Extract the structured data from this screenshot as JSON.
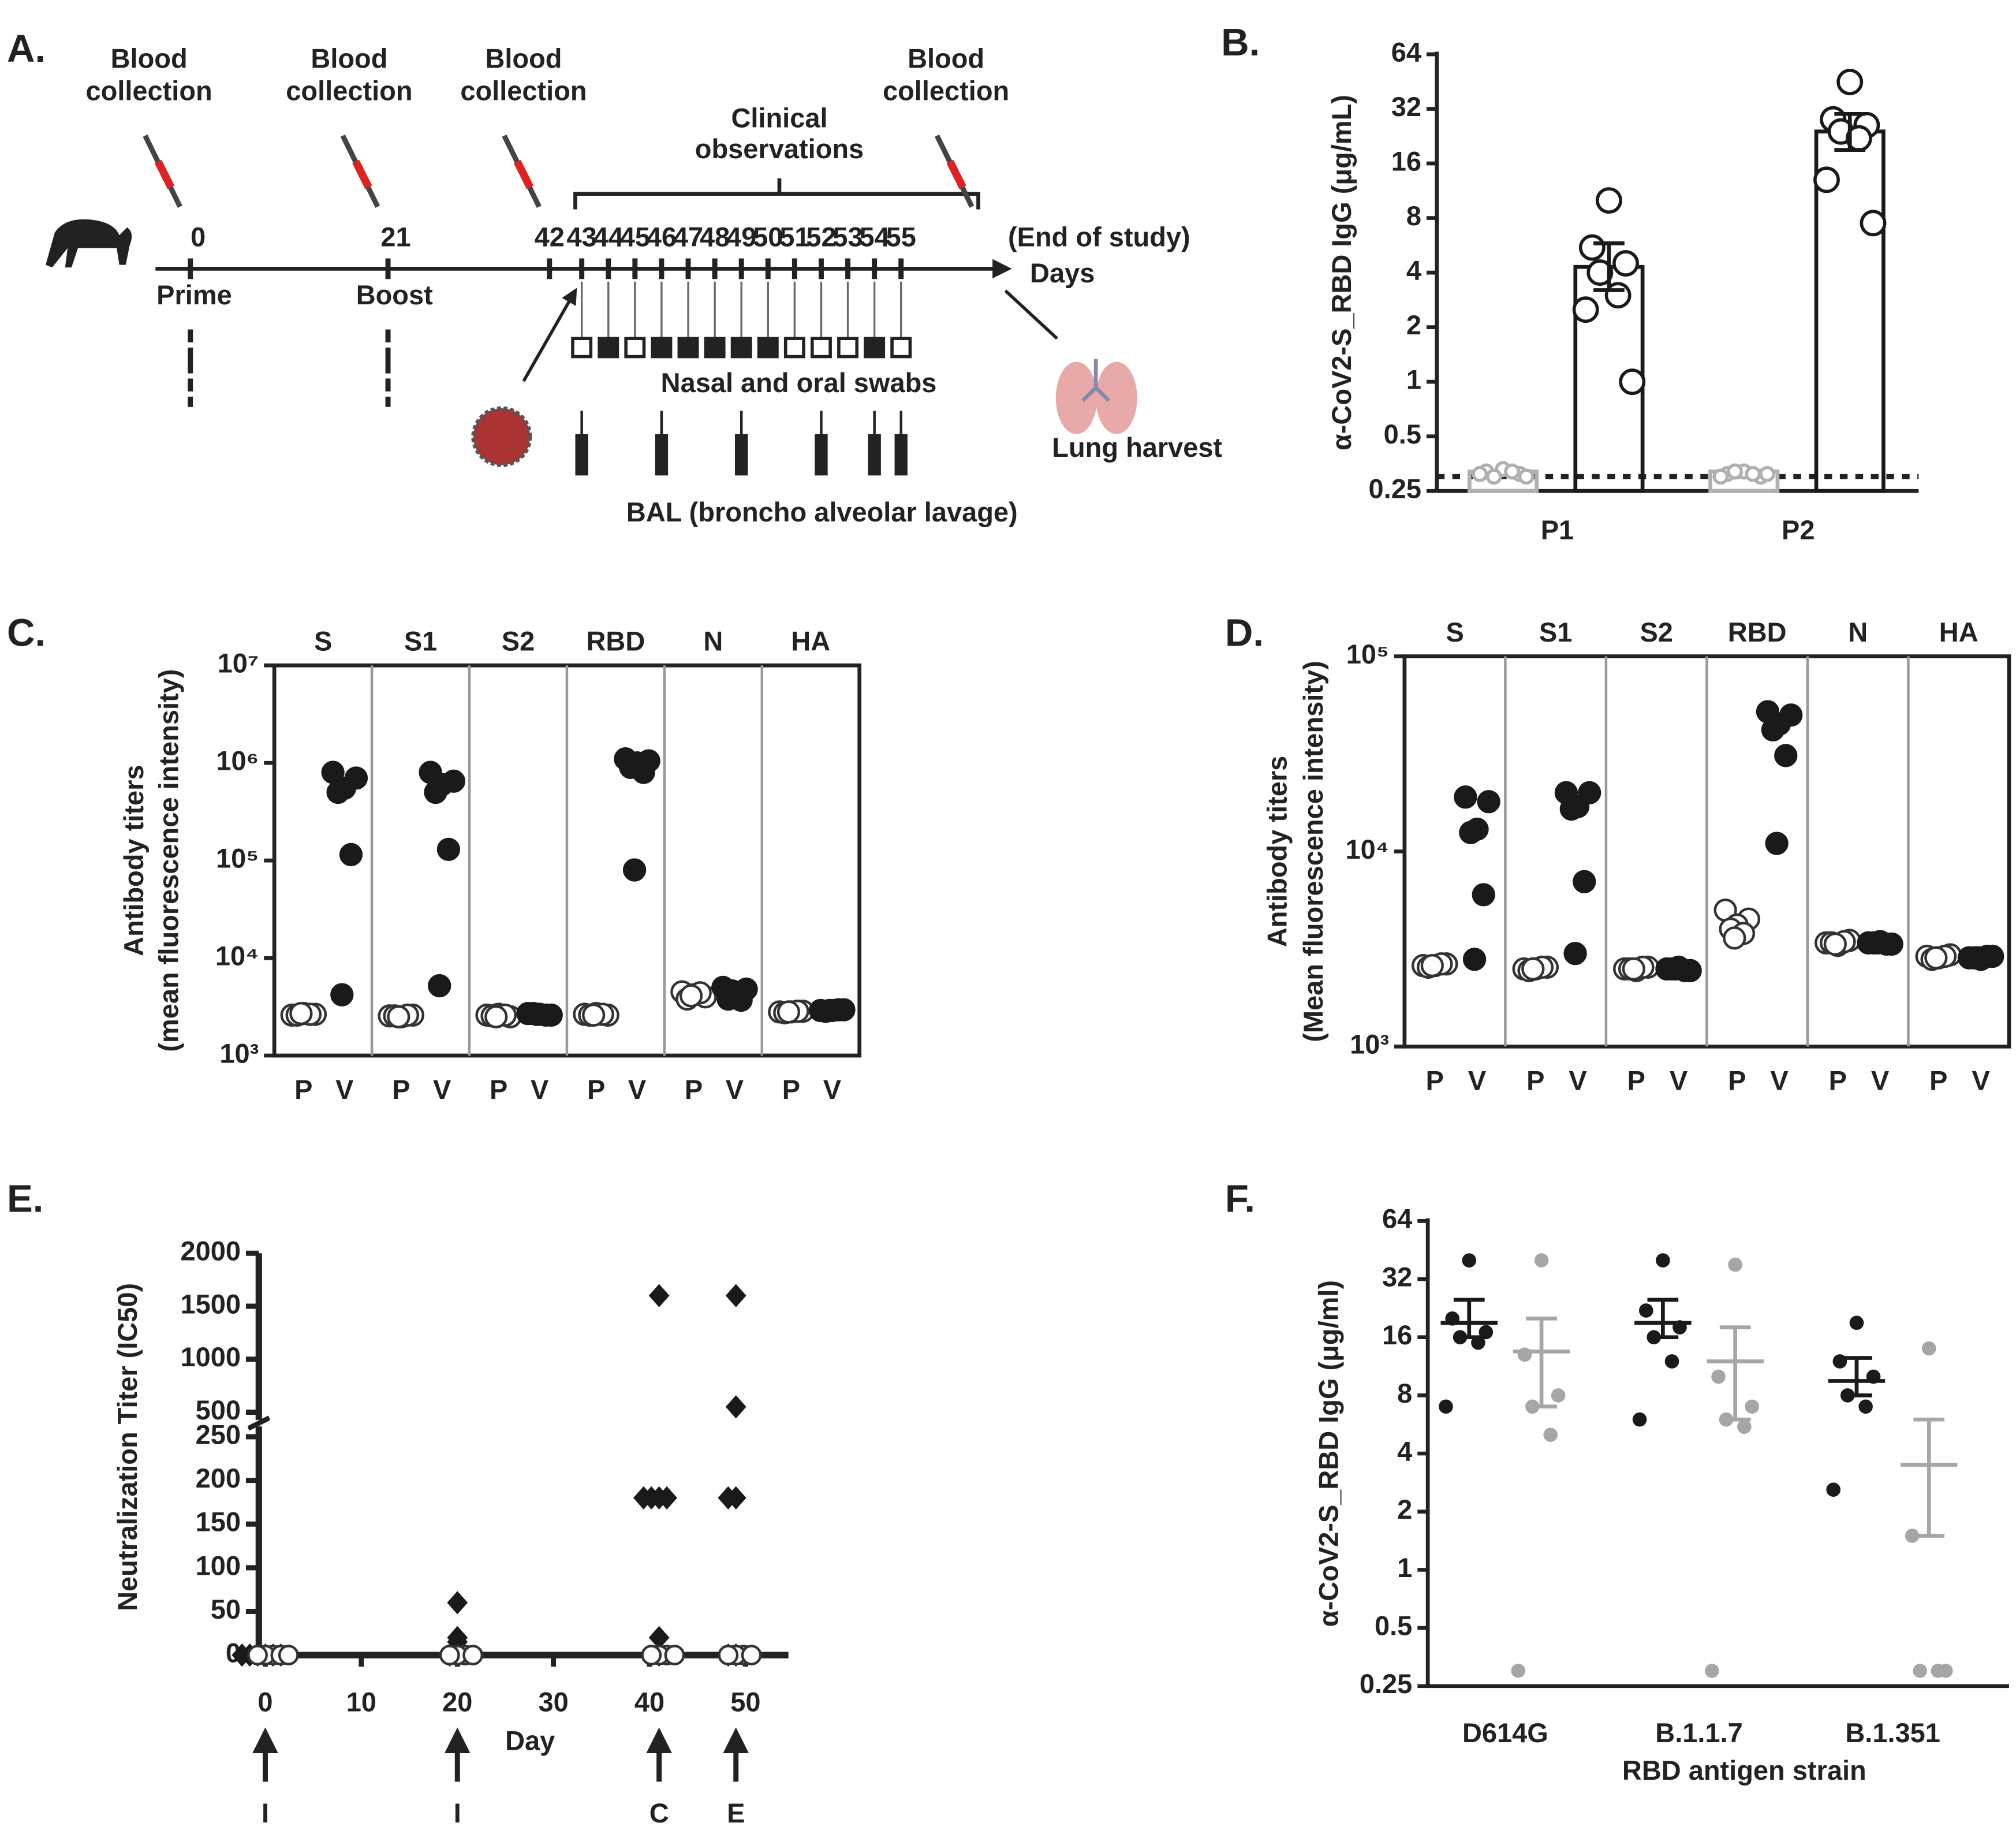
{
  "diagram": {
    "panel": "A.",
    "blood_collection": [
      [
        "Blood",
        "collection"
      ],
      [
        "Blood",
        "collection"
      ],
      [
        "Blood",
        "collection"
      ],
      [
        "Blood",
        "collection"
      ]
    ],
    "clinical": [
      "Clinical",
      "observations"
    ],
    "days": [
      "0",
      "21",
      "42",
      "43",
      "44",
      "45",
      "46",
      "47",
      "48",
      "49",
      "50",
      "51",
      "52",
      "53",
      "54",
      "55"
    ],
    "end_note": "(End of study)",
    "axis_label": "Days",
    "events": [
      "Prime",
      "Boost"
    ],
    "swabs": "Nasal and oral swabs",
    "lung": "Lung harvest",
    "bal": "BAL (broncho alveolar lavage)"
  },
  "chart_data": [
    {
      "panel": "B.",
      "type": "bar",
      "ylabel": "α-CoV2-S_RBD IgG  (μg/mL)",
      "categories": [
        "P1",
        "P2"
      ],
      "log_scale": true,
      "log_base": 2,
      "ylim": [
        0.25,
        64
      ],
      "yticks": [
        0.25,
        0.5,
        1,
        2,
        4,
        8,
        16,
        32,
        64
      ],
      "reference_line": 0.3,
      "series": [
        {
          "color": "#b0b0b0",
          "values": [
            0.32,
            0.32
          ],
          "points": [
            [
              0.33,
              0.32,
              0.31,
              0.3,
              0.32,
              0.31,
              0.3
            ],
            [
              0.32,
              0.31,
              0.3,
              0.32,
              0.31,
              0.3,
              0.31
            ]
          ]
        },
        {
          "color": "#1a1a1a",
          "values": [
            4.3,
            24
          ],
          "error_low": [
            3.2,
            19
          ],
          "error_high": [
            5.8,
            30
          ],
          "points": [
            [
              10,
              5.5,
              4.5,
              4,
              3,
              2.5,
              1
            ],
            [
              45,
              28,
              26,
              24,
              22,
              13,
              7.5
            ]
          ]
        }
      ]
    },
    {
      "panel": "C.",
      "type": "strip",
      "ylabel": [
        "Antibody titers",
        "(mean fluorescence intensity)"
      ],
      "groups": [
        "S",
        "S1",
        "S2",
        "RBD",
        "N",
        "HA"
      ],
      "x_labels": [
        "P",
        "V",
        "P",
        "V",
        "P",
        "V",
        "P",
        "V",
        "P",
        "V",
        "P",
        "V"
      ],
      "log_scale": true,
      "log_base": 10,
      "ylim": [
        1000,
        10000000
      ],
      "yticks": [
        {
          "value": 1000,
          "label": "10³"
        },
        {
          "value": 10000,
          "label": "10⁴"
        },
        {
          "value": 100000,
          "label": "10⁵"
        },
        {
          "value": 1000000,
          "label": "10⁶"
        },
        {
          "value": 10000000,
          "label": "10⁷"
        }
      ],
      "series": [
        {
          "marker": "open",
          "color": "#333333",
          "values": [
            [
              2600,
              2650,
              2700,
              2600,
              2650,
              2700
            ],
            [
              2550,
              2600,
              2500,
              2550,
              2600,
              2500
            ],
            [
              2600,
              2500,
              2650,
              2550,
              2600,
              2500
            ],
            [
              2650,
              2600,
              2700,
              2600,
              2650,
              2600
            ],
            [
              4500,
              4000,
              4200,
              3800,
              4400,
              4100
            ],
            [
              2800,
              2850,
              2800,
              2750,
              2850,
              2800
            ]
          ]
        },
        {
          "marker": "filled",
          "color": "#1a1a1a",
          "values": [
            [
              800000,
              700000,
              550000,
              500000,
              115000,
              4200
            ],
            [
              800000,
              650000,
              600000,
              500000,
              130000,
              5200
            ],
            [
              2700,
              2600,
              2650,
              2700,
              2600,
              2650
            ],
            [
              1100000,
              1050000,
              1000000,
              900000,
              800000,
              80000
            ],
            [
              5000,
              4800,
              4000,
              3800,
              3700,
              4600
            ],
            [
              2900,
              2950,
              2900,
              2850,
              2950,
              2900
            ]
          ]
        }
      ]
    },
    {
      "panel": "D.",
      "type": "strip",
      "ylabel": [
        "Antibody titers",
        "(Mean fluorescence intensity)"
      ],
      "groups": [
        "S",
        "S1",
        "S2",
        "RBD",
        "N",
        "HA"
      ],
      "x_labels": [
        "P",
        "V",
        "P",
        "V",
        "P",
        "V",
        "P",
        "V",
        "P",
        "V",
        "P",
        "V"
      ],
      "log_scale": true,
      "log_base": 10,
      "ylim": [
        1000,
        100000
      ],
      "yticks": [
        {
          "value": 1000,
          "label": "10³"
        },
        {
          "value": 10000,
          "label": "10⁴"
        },
        {
          "value": 100000,
          "label": "10⁵"
        }
      ],
      "series": [
        {
          "marker": "open",
          "color": "#333333",
          "values": [
            [
              2600,
              2650,
              2600,
              2550,
              2650,
              2600
            ],
            [
              2500,
              2550,
              2500,
              2450,
              2550,
              2500
            ],
            [
              2500,
              2550,
              2450,
              2500,
              2550,
              2500
            ],
            [
              5000,
              4500,
              4200,
              4000,
              3800,
              3600
            ],
            [
              3400,
              3500,
              3300,
              3400,
              3450,
              3350
            ],
            [
              2900,
              2950,
              2850,
              2800,
              2900,
              2850
            ]
          ]
        },
        {
          "marker": "filled",
          "color": "#1a1a1a",
          "values": [
            [
              19000,
              18000,
              13000,
              12500,
              6000,
              2800
            ],
            [
              20000,
              20000,
              17000,
              16500,
              7000,
              3000
            ],
            [
              2500,
              2450,
              2550,
              2500,
              2450,
              2500
            ],
            [
              52000,
              50000,
              45000,
              42000,
              31000,
              11000
            ],
            [
              3400,
              3350,
              3450,
              3400,
              3350,
              3400
            ],
            [
              2850,
              2900,
              2800,
              2850,
              2900,
              2850
            ]
          ]
        }
      ]
    },
    {
      "panel": "E.",
      "type": "scatter",
      "ylabel": "Neutralization Titer (IC50)",
      "xlabel": "Day",
      "xlim": [
        0,
        55
      ],
      "xticks": [
        0,
        10,
        20,
        30,
        40,
        50
      ],
      "ylim": [
        0,
        2000
      ],
      "y_break": [
        250,
        500
      ],
      "yticks": [
        0,
        50,
        100,
        150,
        200,
        250,
        500,
        1000,
        1500,
        2000
      ],
      "series": [
        {
          "marker": "diamond",
          "color": "#1a1a1a",
          "x": [
            0,
            0,
            0,
            0,
            0,
            0,
            20,
            20,
            20,
            20,
            20,
            20,
            41,
            41,
            41,
            41,
            41,
            41,
            41,
            49,
            49,
            49,
            49,
            49,
            49
          ],
          "values": [
            0,
            0,
            0,
            0,
            0,
            0,
            60,
            20,
            15,
            5,
            0,
            0,
            1600,
            180,
            180,
            180,
            180,
            20,
            0,
            1600,
            550,
            180,
            180,
            0,
            0
          ]
        },
        {
          "marker": "open",
          "color": "#333333",
          "x": [
            0,
            0,
            0,
            0,
            0,
            20,
            20,
            20,
            20,
            41,
            41,
            41,
            41,
            49,
            49,
            49,
            49
          ],
          "values": [
            0,
            0,
            0,
            0,
            0,
            0,
            0,
            0,
            0,
            0,
            0,
            0,
            0,
            0,
            0,
            0,
            0
          ]
        }
      ],
      "annotations": [
        {
          "x": 0,
          "label": "I"
        },
        {
          "x": 20,
          "label": "I"
        },
        {
          "x": 41,
          "label": "C"
        },
        {
          "x": 49,
          "label": "E"
        }
      ]
    },
    {
      "panel": "F.",
      "type": "dot",
      "ylabel": "α-CoV2-S_RBD IgG  (μg/ml)",
      "xlabel": "RBD antigen strain",
      "categories": [
        "D614G",
        "B.1.1.7",
        "B.1.351"
      ],
      "log_scale": true,
      "log_base": 2,
      "ylim": [
        0.25,
        64
      ],
      "yticks": [
        0.25,
        0.5,
        1,
        2,
        4,
        8,
        16,
        32,
        64
      ],
      "series": [
        {
          "color": "#1a1a1a",
          "points": [
            [
              40,
              20,
              17,
              16,
              15,
              7
            ],
            [
              40,
              22,
              18,
              16,
              12,
              6
            ],
            [
              19,
              12,
              10,
              8,
              7,
              2.6
            ]
          ],
          "values": [
            19,
            19,
            9.5
          ],
          "error_low": [
            16,
            16,
            8
          ],
          "error_high": [
            25,
            25,
            12.5
          ]
        },
        {
          "color": "#a6a6a6",
          "points": [
            [
              40,
              13,
              8,
              7,
              5,
              0.3
            ],
            [
              38,
              10,
              7,
              6,
              5.5,
              0.3
            ],
            [
              14,
              1.5,
              0.3,
              0.3,
              0.3
            ]
          ],
          "values": [
            13.5,
            12,
            3.5
          ],
          "error_low": [
            7,
            6,
            1.5
          ],
          "error_high": [
            20,
            18,
            6
          ]
        }
      ]
    }
  ]
}
